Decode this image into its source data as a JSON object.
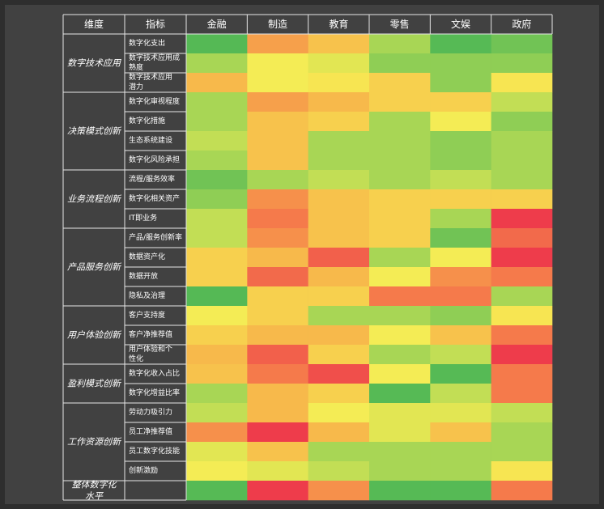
{
  "chart_data": {
    "type": "heatmap",
    "title": "",
    "header": {
      "dimension": "维度",
      "indicator": "指标"
    },
    "columns": [
      "金融",
      "制造",
      "教育",
      "零售",
      "文娱",
      "政府"
    ],
    "groups": [
      {
        "label": [
          "数字技术应用"
        ],
        "rows": [
          {
            "label": [
              "数字化支出"
            ],
            "values": [
              "#55b955",
              "#f6a04b",
              "#f7c24c",
              "#a8d655",
              "#56ba55",
              "#71c355"
            ]
          },
          {
            "label": [
              "数字技术应用成",
              "熟度"
            ],
            "values": [
              "#a8d655",
              "#f4ec55",
              "#e2e653",
              "#8fce55",
              "#8fce55",
              "#8fce55"
            ]
          },
          {
            "label": [
              "数字技术应用",
              "潜力"
            ],
            "values": [
              "#f7b94b",
              "#f4ec55",
              "#f7e552",
              "#f7d04e",
              "#8fce55",
              "#f7e552"
            ]
          }
        ]
      },
      {
        "label": [
          "决策模式创新"
        ],
        "rows": [
          {
            "label": [
              "数字化审视程度"
            ],
            "values": [
              "#a8d655",
              "#f6a04b",
              "#f7b94b",
              "#f7d04e",
              "#f7d04e",
              "#c2de55"
            ]
          },
          {
            "label": [
              "数字化措施"
            ],
            "values": [
              "#a8d655",
              "#f7c24c",
              "#f7d04e",
              "#a8d655",
              "#f4ec55",
              "#8fce55"
            ]
          },
          {
            "label": [
              "生态系统建设"
            ],
            "values": [
              "#c2de55",
              "#f7c24c",
              "#a8d655",
              "#a8d655",
              "#8fce55",
              "#a8d655"
            ]
          },
          {
            "label": [
              "数字化风险承担"
            ],
            "values": [
              "#a8d655",
              "#f7c24c",
              "#a8d655",
              "#a8d655",
              "#8fce55",
              "#a8d655"
            ]
          }
        ]
      },
      {
        "label": [
          "业务流程创新"
        ],
        "rows": [
          {
            "label": [
              "流程/服务效率"
            ],
            "values": [
              "#71c355",
              "#a8d655",
              "#c2de55",
              "#a8d655",
              "#c2de55",
              "#a8d655"
            ]
          },
          {
            "label": [
              "数字化相关资产"
            ],
            "values": [
              "#8fce55",
              "#f6904b",
              "#f7c24c",
              "#f7d04e",
              "#f7d04e",
              "#f7d04e"
            ]
          },
          {
            "label": [
              "IT即业务"
            ],
            "values": [
              "#c2de55",
              "#f57a4b",
              "#f7c24c",
              "#f7d04e",
              "#a8d655",
              "#ee3c4b"
            ]
          }
        ]
      },
      {
        "label": [
          "产品服务创新"
        ],
        "rows": [
          {
            "label": [
              "产品/服务创新率"
            ],
            "values": [
              "#c2de55",
              "#f6904b",
              "#f7c24c",
              "#f7d04e",
              "#71c355",
              "#f26a4b"
            ]
          },
          {
            "label": [
              "数据资产化"
            ],
            "values": [
              "#f7d04e",
              "#f7b94b",
              "#f2604b",
              "#a8d655",
              "#f4ec55",
              "#ee3c4b"
            ]
          },
          {
            "label": [
              "数据开放"
            ],
            "values": [
              "#f7d04e",
              "#f26a4b",
              "#f7b94b",
              "#f4ec55",
              "#f6904b",
              "#f57a4b"
            ]
          },
          {
            "label": [
              "隐私及治理"
            ],
            "values": [
              "#55b955",
              "#f7d04e",
              "#f7d04e",
              "#f57a4b",
              "#f57a4b",
              "#a8d655"
            ]
          }
        ]
      },
      {
        "label": [
          "用户体验创新"
        ],
        "rows": [
          {
            "label": [
              "客户支持度"
            ],
            "values": [
              "#f4ec55",
              "#f7d04e",
              "#a8d655",
              "#a8d655",
              "#8fce55",
              "#f7e552"
            ]
          },
          {
            "label": [
              "客户净推荐值"
            ],
            "values": [
              "#f7d04e",
              "#f7b94b",
              "#f7b94b",
              "#f4ec55",
              "#f7c24c",
              "#f57a4b"
            ]
          },
          {
            "label": [
              "用户体验和个",
              "性化"
            ],
            "values": [
              "#f7b94b",
              "#f2604b",
              "#f7d04e",
              "#a8d655",
              "#c2de55",
              "#ee3c4b"
            ]
          }
        ]
      },
      {
        "label": [
          "盈利模式创新"
        ],
        "rows": [
          {
            "label": [
              "数字化收入占比"
            ],
            "values": [
              "#f7c24c",
              "#f57a4b",
              "#f04f4b",
              "#f4ec55",
              "#56ba55",
              "#f57a4b"
            ]
          },
          {
            "label": [
              "数字化增益比率"
            ],
            "values": [
              "#a8d655",
              "#f7b94b",
              "#f7d04e",
              "#56ba55",
              "#c2de55",
              "#f57a4b"
            ]
          }
        ]
      },
      {
        "label": [
          "工作资源创新"
        ],
        "rows": [
          {
            "label": [
              "劳动力吸引力"
            ],
            "values": [
              "#c2de55",
              "#f7b94b",
              "#f4ec55",
              "#e2e653",
              "#e2e653",
              "#c2de55"
            ]
          },
          {
            "label": [
              "员工净推荐值"
            ],
            "values": [
              "#f6904b",
              "#ee3c4b",
              "#f7b94b",
              "#e2e653",
              "#f7c24c",
              "#a8d655"
            ]
          },
          {
            "label": [
              "员工数字化技能"
            ],
            "values": [
              "#e2e653",
              "#f7c24c",
              "#a8d655",
              "#a8d655",
              "#a8d655",
              "#a8d655"
            ]
          },
          {
            "label": [
              "创新激励"
            ],
            "values": [
              "#f4ec55",
              "#e2e653",
              "#c2de55",
              "#a8d655",
              "#a8d655",
              "#f7e552"
            ]
          }
        ]
      },
      {
        "label": [
          "整体数字化",
          "水平"
        ],
        "rows": [
          {
            "label": [],
            "values": [
              "#56ba55",
              "#ee3c4b",
              "#f6904b",
              "#56ba55",
              "#56ba55",
              "#f57a4b"
            ]
          }
        ]
      }
    ]
  }
}
